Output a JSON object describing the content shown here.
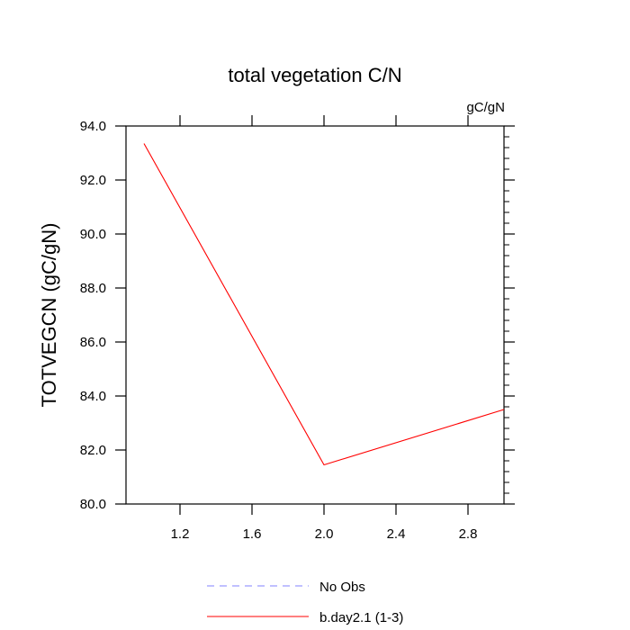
{
  "chart_data": {
    "type": "line",
    "title": "total vegetation C/N",
    "units_label": "gC/gN",
    "xlabel": "",
    "ylabel": "TOTVEGCN  (gC/gN)",
    "xlim": [
      0.9,
      3.0
    ],
    "ylim": [
      80.0,
      94.0
    ],
    "x_ticks": [
      1.2,
      1.6,
      2.0,
      2.4,
      2.8
    ],
    "x_tick_labels": [
      "1.2",
      "1.6",
      "2.0",
      "2.4",
      "2.8"
    ],
    "y_ticks": [
      80.0,
      82.0,
      84.0,
      86.0,
      88.0,
      90.0,
      92.0,
      94.0
    ],
    "y_tick_labels": [
      "80.0",
      "82.0",
      "84.0",
      "86.0",
      "88.0",
      "90.0",
      "92.0",
      "94.0"
    ],
    "grid": false,
    "legend_position": "bottom",
    "series": [
      {
        "name": "No Obs",
        "color": "#8080ff",
        "dashed": true,
        "x": [],
        "y": []
      },
      {
        "name": "b.day2.1 (1-3)",
        "color": "#ff0000",
        "dashed": false,
        "x": [
          1.0,
          2.0,
          3.0
        ],
        "y": [
          93.35,
          81.45,
          83.5
        ]
      }
    ]
  }
}
